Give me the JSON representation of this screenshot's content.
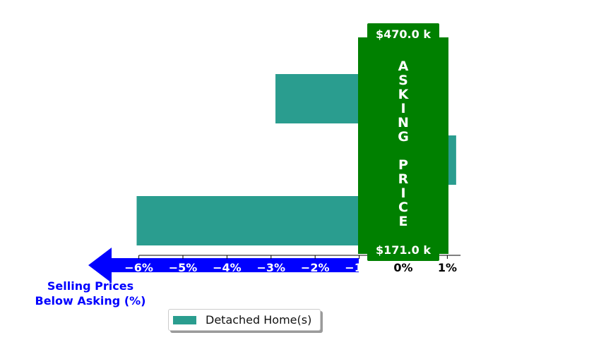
{
  "chart_data": {
    "type": "bar",
    "orientation": "horizontal",
    "categories": [
      "",
      "",
      ""
    ],
    "series": [
      {
        "name": "Detached Home(s)",
        "values": [
          -2.9,
          1.2,
          -6.05
        ],
        "color": "#2a9d8f"
      }
    ],
    "xlim": [
      -7.0,
      1.3
    ],
    "x_ticks": [
      -6,
      -5,
      -4,
      -3,
      -2,
      -1,
      0,
      1
    ],
    "x_tick_labels": [
      "−6%",
      "−5%",
      "−4%",
      "−3%",
      "−2%",
      "−1%",
      "0%",
      "1%"
    ],
    "xlabel": "Selling Prices\nBelow Asking (%)",
    "legend_position": "bottom-center",
    "asking_price_box": {
      "label": "ASKING PRICE",
      "top_price": "$470.0 k",
      "bottom_price": "$171.0 k",
      "color": "#008000"
    },
    "arrow_color": "#0000ff",
    "grid": false
  },
  "direction_label": {
    "line1": "Selling Prices",
    "line2": "Below Asking (%)"
  }
}
